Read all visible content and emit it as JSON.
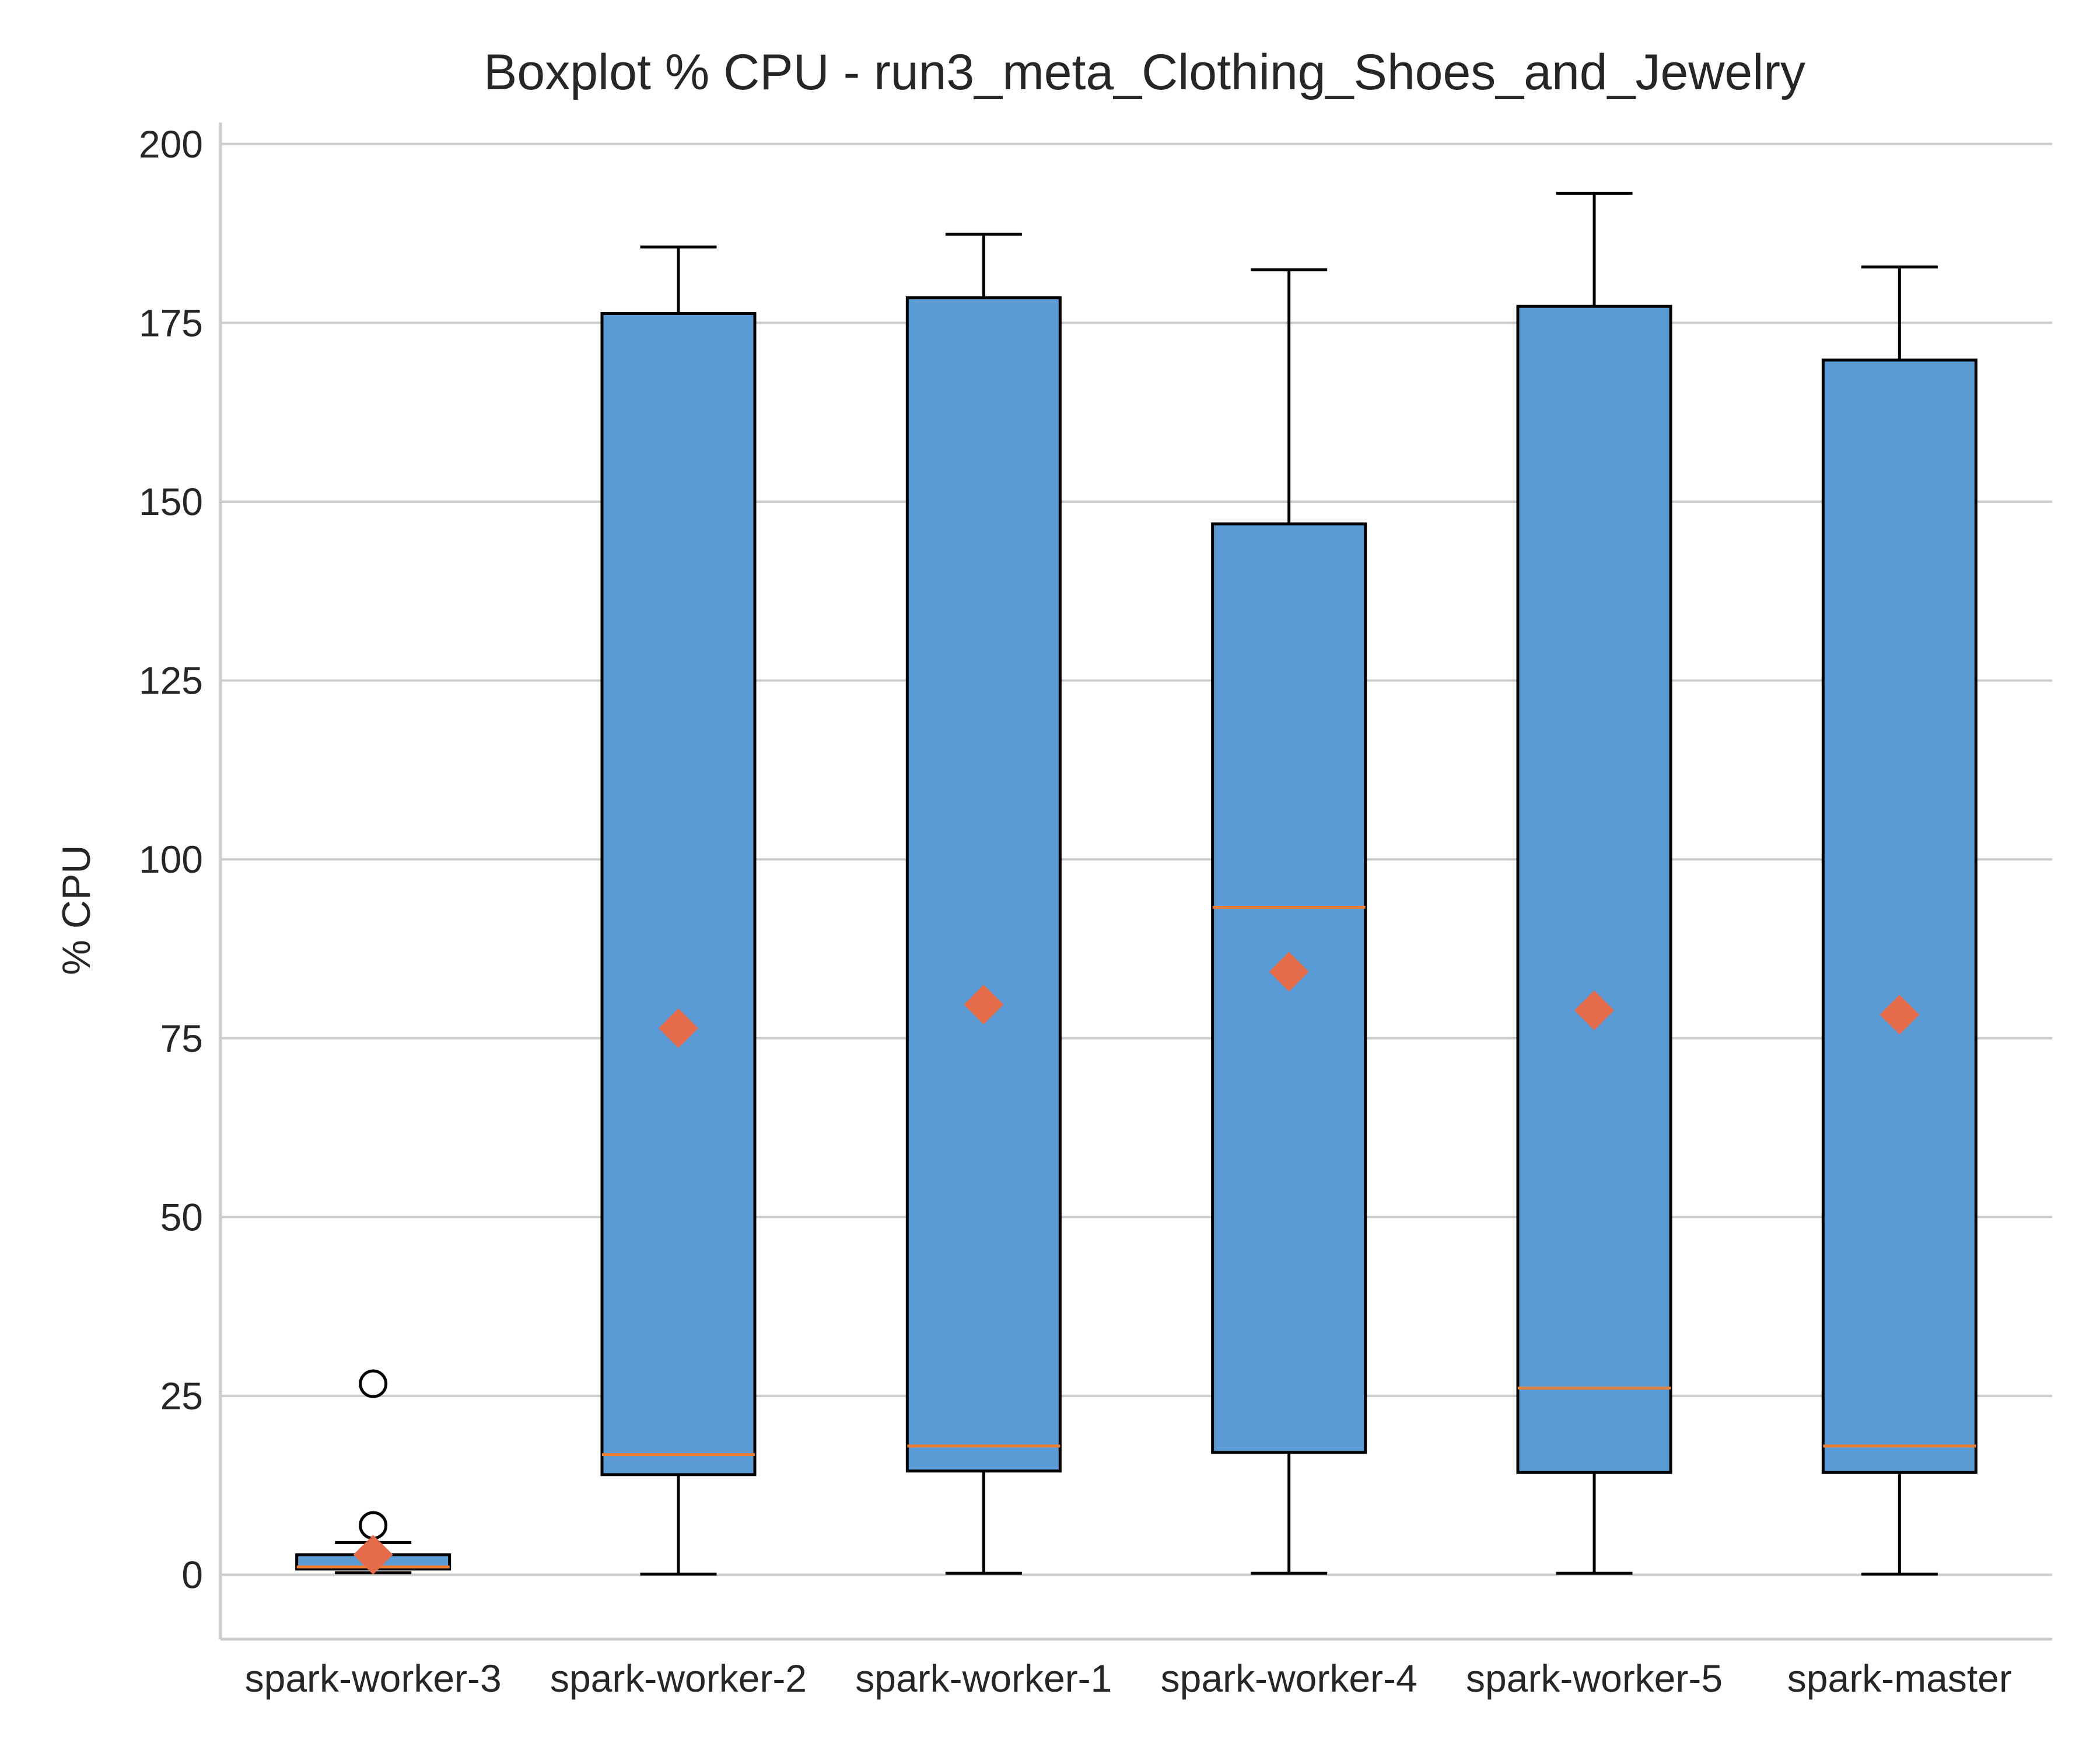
{
  "chart_data": {
    "type": "box",
    "title": "Boxplot % CPU - run3_meta_Clothing_Shoes_and_Jewelry",
    "xlabel": "",
    "ylabel": "% CPU",
    "ylim": [
      -9,
      203
    ],
    "yticks": [
      0,
      25,
      50,
      75,
      100,
      125,
      150,
      175,
      200
    ],
    "grid": "horizontal",
    "colors": {
      "box_fill": "#5b9bd5",
      "box_edge": "#000000",
      "median": "#ed7d31",
      "mean_marker": "#e46c4a",
      "grid": "#cccccc",
      "axis": "#cccccc"
    },
    "categories": [
      "spark-worker-3",
      "spark-worker-2",
      "spark-worker-1",
      "spark-worker-4",
      "spark-worker-5",
      "spark-master"
    ],
    "boxes": [
      {
        "whisker_low": 0.3,
        "q1": 0.8,
        "median": 1.1,
        "q3": 2.8,
        "whisker_high": 4.5,
        "mean": 2.8,
        "outliers": [
          6.9,
          26.7
        ]
      },
      {
        "whisker_low": 0.1,
        "q1": 14.0,
        "median": 16.8,
        "q3": 176.3,
        "whisker_high": 185.6,
        "mean": 76.4,
        "outliers": []
      },
      {
        "whisker_low": 0.2,
        "q1": 14.5,
        "median": 18.0,
        "q3": 178.5,
        "whisker_high": 187.4,
        "mean": 79.7,
        "outliers": []
      },
      {
        "whisker_low": 0.2,
        "q1": 17.1,
        "median": 93.3,
        "q3": 146.9,
        "whisker_high": 182.4,
        "mean": 84.3,
        "outliers": []
      },
      {
        "whisker_low": 0.2,
        "q1": 14.3,
        "median": 26.1,
        "q3": 177.3,
        "whisker_high": 193.1,
        "mean": 78.9,
        "outliers": []
      },
      {
        "whisker_low": 0.1,
        "q1": 14.3,
        "median": 18.0,
        "q3": 169.8,
        "whisker_high": 182.8,
        "mean": 78.3,
        "outliers": []
      }
    ]
  }
}
